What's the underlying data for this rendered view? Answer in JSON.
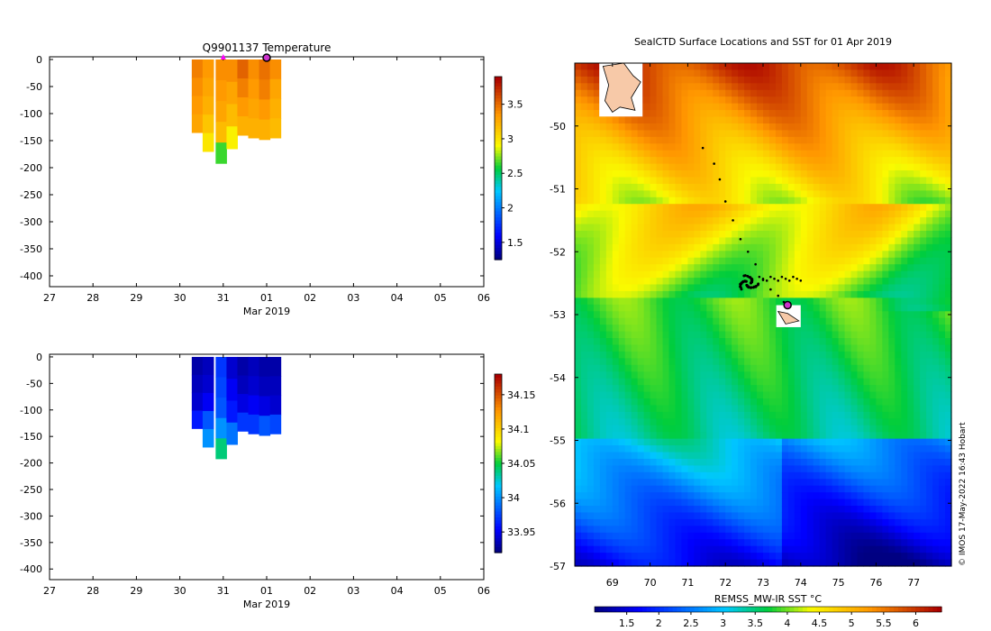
{
  "chart_data": [
    {
      "type": "heatmap",
      "title": "Q9901137  Temperature",
      "xlabel": "Mar 2019",
      "x_ticks": [
        "27",
        "28",
        "29",
        "30",
        "31",
        "01",
        "02",
        "03",
        "04",
        "05",
        "06"
      ],
      "y_ticks": [
        0,
        -50,
        -100,
        -150,
        -200,
        -250,
        -300,
        -350,
        -400
      ],
      "ylim": [
        -420,
        5
      ],
      "colorbar": {
        "ticks": [
          1.5,
          2,
          2.5,
          3,
          3.5
        ],
        "range": [
          1.25,
          3.9
        ]
      },
      "marker": "circle at 01 surface",
      "columns": [
        {
          "day": 3.4,
          "bottom": -135,
          "values": [
            3.45,
            3.4,
            3.35,
            3.3
          ]
        },
        {
          "day": 3.65,
          "bottom": -170,
          "values": [
            3.35,
            3.3,
            3.25,
            3.15,
            3.0
          ]
        },
        {
          "day": 3.95,
          "bottom": -192,
          "values": [
            3.4,
            3.35,
            3.3,
            3.2,
            2.65
          ]
        },
        {
          "day": 4.2,
          "bottom": -165,
          "values": [
            3.4,
            3.3,
            3.2,
            2.95
          ]
        },
        {
          "day": 4.45,
          "bottom": -140,
          "values": [
            3.55,
            3.45,
            3.35,
            3.25
          ]
        },
        {
          "day": 4.7,
          "bottom": -145,
          "values": [
            3.4,
            3.35,
            3.3,
            3.25
          ]
        },
        {
          "day": 4.95,
          "bottom": -148,
          "values": [
            3.5,
            3.45,
            3.35,
            3.25
          ]
        },
        {
          "day": 5.2,
          "bottom": -145,
          "values": [
            3.4,
            3.3,
            3.25,
            3.2
          ]
        }
      ]
    },
    {
      "type": "heatmap",
      "title": "",
      "xlabel": "Mar 2019",
      "x_ticks": [
        "27",
        "28",
        "29",
        "30",
        "31",
        "01",
        "02",
        "03",
        "04",
        "05",
        "06"
      ],
      "y_ticks": [
        0,
        -50,
        -100,
        -150,
        -200,
        -250,
        -300,
        -350,
        -400
      ],
      "ylim": [
        -420,
        5
      ],
      "colorbar": {
        "ticks": [
          33.95,
          34,
          34.05,
          34.1,
          34.15
        ],
        "range": [
          33.92,
          34.18
        ]
      },
      "columns": [
        {
          "day": 3.4,
          "bottom": -135,
          "values": [
            33.93,
            33.935,
            33.94,
            33.96
          ]
        },
        {
          "day": 3.65,
          "bottom": -170,
          "values": [
            33.935,
            33.94,
            33.95,
            33.98,
            34.0
          ]
        },
        {
          "day": 3.95,
          "bottom": -192,
          "values": [
            33.97,
            33.975,
            33.98,
            34.0,
            34.04
          ]
        },
        {
          "day": 4.2,
          "bottom": -165,
          "values": [
            33.94,
            33.95,
            33.96,
            33.99
          ]
        },
        {
          "day": 4.45,
          "bottom": -140,
          "values": [
            33.93,
            33.935,
            33.945,
            33.97
          ]
        },
        {
          "day": 4.7,
          "bottom": -145,
          "values": [
            33.935,
            33.94,
            33.95,
            33.97
          ]
        },
        {
          "day": 4.95,
          "bottom": -148,
          "values": [
            33.93,
            33.935,
            33.945,
            33.98
          ]
        },
        {
          "day": 5.2,
          "bottom": -145,
          "values": [
            33.93,
            33.935,
            33.94,
            33.975
          ]
        }
      ]
    },
    {
      "type": "heatmap",
      "title": "SealCTD Surface Locations and SST for 01 Apr 2019",
      "x_ticks": [
        69,
        70,
        71,
        72,
        73,
        74,
        75,
        76,
        77
      ],
      "y_ticks": [
        -50,
        -51,
        -52,
        -53,
        -54,
        -55,
        -56,
        -57
      ],
      "xlim": [
        68.0,
        78.0
      ],
      "ylim": [
        -57.0,
        -49.0
      ],
      "colorbar": {
        "label": "REMSS_MW-IR SST °C",
        "ticks": [
          1.5,
          2,
          2.5,
          3,
          3.5,
          4,
          4.5,
          5,
          5.5,
          6
        ],
        "range": [
          1.0,
          6.4
        ]
      },
      "seal_track": [
        [
          71.4,
          -50.35
        ],
        [
          71.7,
          -50.6
        ],
        [
          71.85,
          -50.85
        ],
        [
          72.0,
          -51.2
        ],
        [
          72.2,
          -51.5
        ],
        [
          72.4,
          -51.8
        ],
        [
          72.6,
          -52.0
        ],
        [
          72.8,
          -52.2
        ],
        [
          73.0,
          -52.45
        ],
        [
          73.2,
          -52.6
        ],
        [
          73.4,
          -52.7
        ],
        [
          73.55,
          -52.8
        ]
      ],
      "seal_cluster": [
        72.6,
        -52.5
      ],
      "current_location": [
        73.65,
        -52.85
      ]
    }
  ],
  "footer": {
    "credit": "© IMOS 17-May-2022 16:43 Hobart"
  }
}
